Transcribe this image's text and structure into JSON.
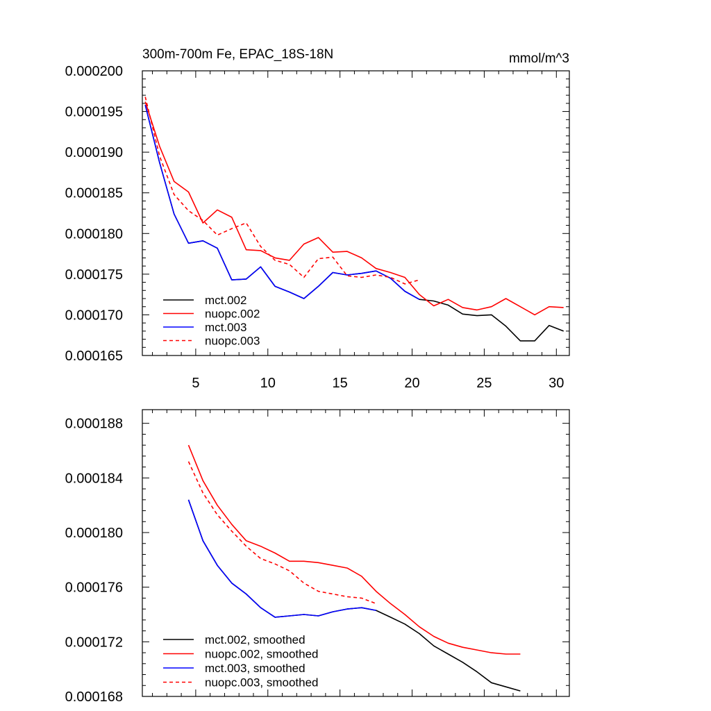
{
  "chart_data": [
    {
      "type": "line",
      "title": "300m-700m Fe, EPAC_18S-18N",
      "units": "mmol/m^3",
      "xlim": [
        1.3,
        30.9
      ],
      "ylim": [
        0.000165,
        0.0002
      ],
      "xticks": [
        5,
        10,
        15,
        20,
        25,
        30
      ],
      "xtick_labels": [
        "5",
        "10",
        "15",
        "20",
        "25",
        "30"
      ],
      "yticks": [
        0.000165,
        0.00017,
        0.000175,
        0.00018,
        0.000185,
        0.00019,
        0.000195,
        0.0002
      ],
      "ytick_labels": [
        "0.000165",
        "0.000170",
        "0.000175",
        "0.000180",
        "0.000185",
        "0.000190",
        "0.000195",
        "0.000200"
      ],
      "legend_position": "bottom-left",
      "series": [
        {
          "name": "mct.002",
          "color": "#000000",
          "dashed": false,
          "x": [
            1.5,
            2.5,
            3.5,
            4.5,
            5.5,
            6.5,
            7.5,
            8.5,
            9.5,
            10.5,
            11.5,
            12.5,
            13.5,
            14.5,
            15.5,
            16.5,
            17.5,
            18.5,
            19.5,
            20.5,
            21.5,
            22.5,
            23.5,
            24.5,
            25.5,
            26.5,
            27.5,
            28.5,
            29.5,
            30.5
          ],
          "y": [
            0.0001958,
            0.0001887,
            0.0001824,
            0.0001788,
            0.0001791,
            0.0001782,
            0.0001743,
            0.0001744,
            0.0001759,
            0.0001735,
            0.0001728,
            0.000172,
            0.0001735,
            0.0001752,
            0.0001749,
            0.0001751,
            0.0001754,
            0.0001745,
            0.0001729,
            0.0001719,
            0.0001717,
            0.0001712,
            0.0001701,
            0.0001699,
            0.00017,
            0.0001686,
            0.0001668,
            0.0001668,
            0.0001687,
            0.000168
          ]
        },
        {
          "name": "nuopc.002",
          "color": "#ff0000",
          "dashed": false,
          "x": [
            1.5,
            2.5,
            3.5,
            4.5,
            5.5,
            6.5,
            7.5,
            8.5,
            9.5,
            10.5,
            11.5,
            12.5,
            13.5,
            14.5,
            15.5,
            16.5,
            17.5,
            18.5,
            19.5,
            20.5,
            21.5,
            22.5,
            23.5,
            24.5,
            25.5,
            26.5,
            27.5,
            28.5,
            29.5,
            30.5
          ],
          "y": [
            0.0001962,
            0.0001907,
            0.0001864,
            0.0001851,
            0.0001813,
            0.0001829,
            0.000182,
            0.000178,
            0.0001779,
            0.000177,
            0.0001767,
            0.0001787,
            0.0001795,
            0.0001777,
            0.0001778,
            0.000177,
            0.0001757,
            0.0001752,
            0.0001746,
            0.0001725,
            0.0001711,
            0.0001719,
            0.0001709,
            0.0001706,
            0.000171,
            0.000172,
            0.000171,
            0.00017,
            0.000171,
            0.0001709
          ]
        },
        {
          "name": "mct.003",
          "color": "#0000ff",
          "dashed": false,
          "x": [
            1.5,
            2.5,
            3.5,
            4.5,
            5.5,
            6.5,
            7.5,
            8.5,
            9.5,
            10.5,
            11.5,
            12.5,
            13.5,
            14.5,
            15.5,
            16.5,
            17.5,
            18.5,
            19.5,
            20.5
          ],
          "y": [
            0.0001958,
            0.0001887,
            0.0001824,
            0.0001788,
            0.0001791,
            0.0001782,
            0.0001743,
            0.0001744,
            0.0001759,
            0.0001735,
            0.0001728,
            0.000172,
            0.0001735,
            0.0001752,
            0.0001749,
            0.0001751,
            0.0001754,
            0.0001745,
            0.0001729,
            0.0001719
          ]
        },
        {
          "name": "nuopc.003",
          "color": "#ff0000",
          "dashed": true,
          "x": [
            1.5,
            2.5,
            3.5,
            4.5,
            5.5,
            6.5,
            7.5,
            8.5,
            9.5,
            10.5,
            11.5,
            12.5,
            13.5,
            14.5,
            15.5,
            16.5,
            17.5,
            18.5,
            19.5,
            20.5
          ],
          "y": [
            0.0001968,
            0.0001895,
            0.0001848,
            0.0001828,
            0.0001816,
            0.0001798,
            0.0001806,
            0.0001813,
            0.0001784,
            0.0001767,
            0.0001762,
            0.0001746,
            0.0001769,
            0.0001771,
            0.0001748,
            0.0001746,
            0.0001749,
            0.0001746,
            0.0001738,
            0.0001743
          ]
        }
      ]
    },
    {
      "type": "line",
      "title": "",
      "xlim": [
        1.3,
        30.9
      ],
      "ylim": [
        0.000168,
        0.000189
      ],
      "xticks": [
        5,
        10,
        15,
        20,
        25,
        30
      ],
      "xtick_labels": [],
      "yticks": [
        0.000168,
        0.000172,
        0.000176,
        0.00018,
        0.000184,
        0.000188
      ],
      "ytick_labels": [
        "0.000168",
        "0.000172",
        "0.000176",
        "0.000180",
        "0.000184",
        "0.000188"
      ],
      "legend_position": "bottom-left",
      "series": [
        {
          "name": "mct.002, smoothed",
          "color": "#000000",
          "dashed": false,
          "x": [
            4.5,
            5.5,
            6.5,
            7.5,
            8.5,
            9.5,
            10.5,
            11.5,
            12.5,
            13.5,
            14.5,
            15.5,
            16.5,
            17.5,
            18.5,
            19.5,
            20.5,
            21.5,
            22.5,
            23.5,
            24.5,
            25.5,
            26.5,
            27.5
          ],
          "y": [
            0.0001824,
            0.0001794,
            0.0001776,
            0.0001763,
            0.0001755,
            0.0001745,
            0.0001738,
            0.0001739,
            0.000174,
            0.0001739,
            0.0001742,
            0.0001744,
            0.0001745,
            0.0001743,
            0.0001738,
            0.0001733,
            0.0001726,
            0.0001717,
            0.0001711,
            0.0001705,
            0.0001698,
            0.000169,
            0.0001687,
            0.0001684
          ]
        },
        {
          "name": "nuopc.002, smoothed",
          "color": "#ff0000",
          "dashed": false,
          "x": [
            4.5,
            5.5,
            6.5,
            7.5,
            8.5,
            9.5,
            10.5,
            11.5,
            12.5,
            13.5,
            14.5,
            15.5,
            16.5,
            17.5,
            18.5,
            19.5,
            20.5,
            21.5,
            22.5,
            23.5,
            24.5,
            25.5,
            26.5,
            27.5
          ],
          "y": [
            0.0001864,
            0.0001838,
            0.000182,
            0.0001806,
            0.0001794,
            0.000179,
            0.0001785,
            0.0001779,
            0.0001779,
            0.0001778,
            0.0001776,
            0.0001774,
            0.0001768,
            0.0001757,
            0.0001748,
            0.000174,
            0.0001731,
            0.0001724,
            0.0001719,
            0.0001716,
            0.0001714,
            0.0001712,
            0.0001711,
            0.0001711
          ]
        },
        {
          "name": "mct.003, smoothed",
          "color": "#0000ff",
          "dashed": false,
          "x": [
            4.5,
            5.5,
            6.5,
            7.5,
            8.5,
            9.5,
            10.5,
            11.5,
            12.5,
            13.5,
            14.5,
            15.5,
            16.5,
            17.5
          ],
          "y": [
            0.0001824,
            0.0001794,
            0.0001776,
            0.0001763,
            0.0001755,
            0.0001745,
            0.0001738,
            0.0001739,
            0.000174,
            0.0001739,
            0.0001742,
            0.0001744,
            0.0001745,
            0.0001743
          ]
        },
        {
          "name": "nuopc.003, smoothed",
          "color": "#ff0000",
          "dashed": true,
          "x": [
            4.5,
            5.5,
            6.5,
            7.5,
            8.5,
            9.5,
            10.5,
            11.5,
            12.5,
            13.5,
            14.5,
            15.5,
            16.5,
            17.5
          ],
          "y": [
            0.0001852,
            0.0001829,
            0.0001813,
            0.0001801,
            0.000179,
            0.0001781,
            0.0001777,
            0.0001772,
            0.0001763,
            0.0001757,
            0.0001755,
            0.0001753,
            0.0001752,
            0.0001748
          ]
        }
      ]
    }
  ]
}
